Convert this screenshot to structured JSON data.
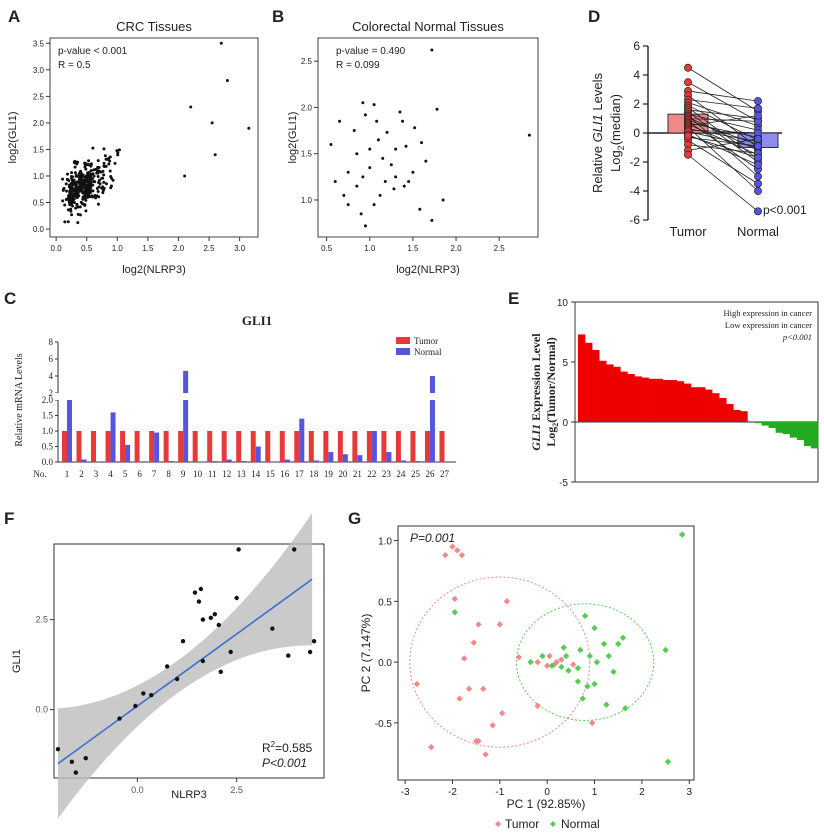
{
  "panel_letters": {
    "A": "A",
    "B": "B",
    "C": "C",
    "D": "D",
    "E": "E",
    "F": "F",
    "G": "G"
  },
  "colors": {
    "tumor": "#e8393a",
    "normal": "#5555e0",
    "tumor_light": "#f08a8a",
    "normal_light": "#8c8cf0",
    "red": "#ee0000",
    "green": "#22aa22",
    "pca_tumor": "#f08a8a",
    "pca_normal": "#55cc55",
    "fit_line": "#3a6fd0",
    "ci_band": "#bdbdbd"
  },
  "chart_data": [
    {
      "id": "A",
      "type": "scatter",
      "title": "CRC Tissues",
      "xlabel": "log2(NLRP3)",
      "ylabel": "log2(GLI1)",
      "xlim": [
        -0.1,
        3.3
      ],
      "ylim": [
        -0.15,
        3.6
      ],
      "xticks": [
        "0.0",
        "0.5",
        "1.0",
        "1.5",
        "2.0",
        "2.5",
        "3.0"
      ],
      "yticks": [
        "0.0",
        "0.5",
        "1.0",
        "1.5",
        "2.0",
        "2.5",
        "3.0",
        "3.5"
      ],
      "annotations": [
        "p-value < 0.001",
        "R = 0.5"
      ],
      "n_points": 320,
      "trend": {
        "slope": 0.62,
        "intercept": 0.55,
        "noise": 0.42
      },
      "outliers": [
        [
          2.7,
          3.5
        ],
        [
          2.8,
          2.8
        ],
        [
          3.15,
          1.9
        ],
        [
          2.6,
          1.4
        ],
        [
          2.55,
          2.0
        ],
        [
          2.2,
          2.3
        ],
        [
          2.1,
          1.0
        ]
      ]
    },
    {
      "id": "B",
      "type": "scatter",
      "title": "Colorectal Normal Tissues",
      "xlabel": "log2(NLRP3)",
      "ylabel": "log2(GLI1)",
      "xlim": [
        0.4,
        2.95
      ],
      "ylim": [
        0.6,
        2.75
      ],
      "xticks": [
        "0.5",
        "1.0",
        "1.5",
        "2.0",
        "2.5"
      ],
      "yticks": [
        "1.0",
        "1.5",
        "2.0",
        "2.5"
      ],
      "annotations": [
        "p-value = 0.490",
        "R = 0.099"
      ],
      "points": [
        [
          1.72,
          2.62
        ],
        [
          0.92,
          2.05
        ],
        [
          1.05,
          2.03
        ],
        [
          1.78,
          1.98
        ],
        [
          0.65,
          1.85
        ],
        [
          0.95,
          1.92
        ],
        [
          1.38,
          1.85
        ],
        [
          0.82,
          1.75
        ],
        [
          1.2,
          1.73
        ],
        [
          1.52,
          1.78
        ],
        [
          1.1,
          1.65
        ],
        [
          1.3,
          1.55
        ],
        [
          1.6,
          1.62
        ],
        [
          0.55,
          1.6
        ],
        [
          0.85,
          1.5
        ],
        [
          1.0,
          1.55
        ],
        [
          1.15,
          1.45
        ],
        [
          1.42,
          1.58
        ],
        [
          1.0,
          1.35
        ],
        [
          1.25,
          1.38
        ],
        [
          1.5,
          1.3
        ],
        [
          1.65,
          1.42
        ],
        [
          0.75,
          1.3
        ],
        [
          0.92,
          1.25
        ],
        [
          1.18,
          1.2
        ],
        [
          1.3,
          1.25
        ],
        [
          1.45,
          1.2
        ],
        [
          1.4,
          1.15
        ],
        [
          1.28,
          1.12
        ],
        [
          0.6,
          1.2
        ],
        [
          0.85,
          1.15
        ],
        [
          0.7,
          1.05
        ],
        [
          1.12,
          1.05
        ],
        [
          1.05,
          0.95
        ],
        [
          0.75,
          0.95
        ],
        [
          1.58,
          0.9
        ],
        [
          0.9,
          0.85
        ],
        [
          1.85,
          1.0
        ],
        [
          1.72,
          0.78
        ],
        [
          0.95,
          0.72
        ],
        [
          2.85,
          1.7
        ],
        [
          1.08,
          1.85
        ],
        [
          1.35,
          1.95
        ]
      ]
    },
    {
      "id": "C",
      "type": "bar",
      "title": "GLI1",
      "xlabel": "No.",
      "ylabel": "Relative mRNA Levels",
      "categories": [
        "1",
        "2",
        "3",
        "4",
        "5",
        "6",
        "7",
        "8",
        "9",
        "10",
        "11",
        "12",
        "13",
        "14",
        "15",
        "16",
        "17",
        "18",
        "19",
        "20",
        "21",
        "22",
        "23",
        "24",
        "25",
        "26",
        "27"
      ],
      "yticks_lower": [
        "0.0",
        "0.5",
        "1.0",
        "1.5",
        "2.0"
      ],
      "yticks_upper": [
        "2",
        "4",
        "6",
        "8"
      ],
      "axis_break": [
        2.0,
        2.0
      ],
      "series": [
        {
          "name": "Tumor",
          "values": [
            1,
            1,
            1,
            1,
            1,
            1,
            1,
            1,
            1,
            1,
            1,
            1,
            1,
            1,
            1,
            1,
            1,
            1,
            1,
            1,
            1,
            1,
            1,
            1,
            1,
            1,
            1
          ]
        },
        {
          "name": "Normal",
          "values": [
            2.0,
            0.08,
            0.02,
            1.6,
            0.55,
            0.02,
            0.95,
            0.03,
            4.6,
            0.02,
            0.03,
            0.08,
            0.03,
            0.5,
            0.02,
            0.08,
            1.4,
            0.05,
            0.32,
            0.25,
            0.22,
            1.0,
            0.32,
            0.05,
            0.03,
            4.0,
            0.02
          ]
        }
      ],
      "legend": [
        "Tumor",
        "Normal"
      ],
      "legend_position": "top-right"
    },
    {
      "id": "D",
      "type": "bar",
      "ylabel_line1": "Relative ",
      "ylabel_gene": "GLI1",
      "ylabel_line1_end": " Levels",
      "ylabel_line2": "Log",
      "ylabel_sub": "2",
      "ylabel_line2_end": "(median)",
      "categories": [
        "Tumor",
        "Normal"
      ],
      "values": [
        1.3,
        -1.0
      ],
      "ylim": [
        -6,
        6
      ],
      "yticks": [
        "-6",
        "-4",
        "-2",
        "0",
        "2",
        "4",
        "6"
      ],
      "annotation": "p<0.001",
      "pairs": [
        [
          4.5,
          1.5
        ],
        [
          3.5,
          0.8
        ],
        [
          2.9,
          2.2
        ],
        [
          2.6,
          -1.0
        ],
        [
          2.3,
          1.7
        ],
        [
          2.1,
          0.5
        ],
        [
          1.9,
          -0.5
        ],
        [
          1.75,
          -1.8
        ],
        [
          1.6,
          1.0
        ],
        [
          1.45,
          -2.0
        ],
        [
          1.3,
          0.2
        ],
        [
          1.2,
          -3.0
        ],
        [
          1.1,
          -1.2
        ],
        [
          1.0,
          0.8
        ],
        [
          0.9,
          -0.8
        ],
        [
          0.8,
          -2.5
        ],
        [
          0.7,
          -0.3
        ],
        [
          0.6,
          -1.5
        ],
        [
          0.5,
          1.2
        ],
        [
          0.4,
          -4.0
        ],
        [
          0.3,
          -0.6
        ],
        [
          0.2,
          0.0
        ],
        [
          0.1,
          -1.0
        ],
        [
          -0.1,
          -2.2
        ],
        [
          -0.3,
          -0.9
        ],
        [
          -0.5,
          -3.5
        ],
        [
          -0.8,
          -1.4
        ],
        [
          -1.2,
          -0.4
        ],
        [
          -1.5,
          -5.4
        ],
        [
          -0.2,
          -1.7
        ]
      ]
    },
    {
      "id": "E",
      "type": "bar",
      "ylabel_gene": "GLI1",
      "ylabel_line1_end": " Expression Level",
      "ylabel_line2": "Log",
      "ylabel_sub": "2",
      "ylabel_line2_end": "(Tumor/Normal)",
      "ylim": [
        -5,
        10
      ],
      "yticks": [
        "-5",
        "0",
        "5",
        "10"
      ],
      "values": [
        7.3,
        6.6,
        6.0,
        5.1,
        4.8,
        4.6,
        4.2,
        4.0,
        3.8,
        3.7,
        3.6,
        3.6,
        3.5,
        3.5,
        3.4,
        3.2,
        2.9,
        2.9,
        2.7,
        2.4,
        2.0,
        1.5,
        1.0,
        0.9,
        0.05,
        -0.1,
        -0.3,
        -0.5,
        -0.9,
        -1.0,
        -1.3,
        -1.5,
        -2.0,
        -2.2
      ],
      "legend": [
        "High expression in cancer",
        "Low expression in cancer"
      ],
      "annotation": "p<0.001"
    },
    {
      "id": "F",
      "type": "scatter",
      "xlabel": "NLRP3",
      "ylabel": "GLI1",
      "xlim": [
        -2.1,
        4.7
      ],
      "ylim": [
        -1.9,
        4.6
      ],
      "xticks": [
        "0.0",
        "2.5"
      ],
      "yticks": [
        "0.0",
        "2.5"
      ],
      "r2_label": "R",
      "r2_sup": "2",
      "r2_value": "=0.585",
      "p_label": "P<0.001",
      "fit": {
        "slope": 0.8,
        "intercept": 0.1
      },
      "points": [
        [
          -2.0,
          -1.1
        ],
        [
          -1.65,
          -1.45
        ],
        [
          -1.55,
          -1.75
        ],
        [
          -1.3,
          -1.35
        ],
        [
          -0.45,
          -0.25
        ],
        [
          -0.05,
          0.1
        ],
        [
          0.15,
          0.45
        ],
        [
          0.35,
          0.4
        ],
        [
          0.75,
          1.2
        ],
        [
          1.0,
          0.85
        ],
        [
          1.15,
          1.9
        ],
        [
          1.45,
          3.25
        ],
        [
          1.55,
          3.0
        ],
        [
          1.6,
          3.35
        ],
        [
          1.65,
          2.5
        ],
        [
          1.65,
          1.35
        ],
        [
          1.85,
          2.55
        ],
        [
          1.95,
          2.65
        ],
        [
          2.05,
          2.35
        ],
        [
          2.1,
          1.05
        ],
        [
          2.35,
          1.6
        ],
        [
          2.55,
          4.45
        ],
        [
          2.5,
          3.1
        ],
        [
          3.4,
          2.25
        ],
        [
          3.8,
          1.5
        ],
        [
          3.95,
          4.45
        ],
        [
          4.35,
          1.6
        ],
        [
          4.45,
          1.9
        ]
      ]
    },
    {
      "id": "G",
      "type": "scatter",
      "annotation": "P=0.001",
      "xlabel": "PC 1 (92.85%)",
      "ylabel": "PC 2 (7.147%)",
      "xlim": [
        -3.15,
        3.1
      ],
      "ylim": [
        -0.97,
        1.12
      ],
      "xticks": [
        "-3",
        "-2",
        "-1",
        "0",
        "1",
        "2",
        "3"
      ],
      "yticks": [
        "-0.5",
        "0.0",
        "0.5",
        "1.0"
      ],
      "legend": [
        "Tumor",
        "Normal"
      ],
      "legend_position": "bottom",
      "tumor_points": [
        [
          -2.0,
          0.95
        ],
        [
          -1.9,
          0.92
        ],
        [
          -2.15,
          0.88
        ],
        [
          -1.8,
          0.88
        ],
        [
          -1.95,
          0.52
        ],
        [
          -1.45,
          0.31
        ],
        [
          -1.0,
          0.31
        ],
        [
          -0.85,
          0.5
        ],
        [
          -1.55,
          0.16
        ],
        [
          -0.6,
          0.04
        ],
        [
          -0.2,
          0.0
        ],
        [
          0.0,
          -0.03
        ],
        [
          0.05,
          0.05
        ],
        [
          0.3,
          0.02
        ],
        [
          0.15,
          -0.02
        ],
        [
          -1.75,
          0.03
        ],
        [
          -2.75,
          -0.18
        ],
        [
          -1.65,
          -0.22
        ],
        [
          -1.35,
          -0.22
        ],
        [
          -1.85,
          -0.3
        ],
        [
          -0.95,
          -0.42
        ],
        [
          -1.15,
          -0.52
        ],
        [
          -0.2,
          -0.36
        ],
        [
          -1.5,
          -0.65
        ],
        [
          -1.45,
          -0.65
        ],
        [
          -2.45,
          -0.7
        ],
        [
          -1.3,
          -0.76
        ],
        [
          0.95,
          -0.5
        ],
        [
          0.2,
          0.0
        ],
        [
          0.55,
          -0.02
        ]
      ],
      "normal_points": [
        [
          2.85,
          1.05
        ],
        [
          -1.95,
          0.41
        ],
        [
          0.8,
          0.38
        ],
        [
          1.0,
          0.28
        ],
        [
          1.6,
          0.2
        ],
        [
          1.2,
          0.15
        ],
        [
          1.5,
          0.15
        ],
        [
          2.5,
          0.1
        ],
        [
          0.35,
          0.12
        ],
        [
          0.7,
          0.1
        ],
        [
          0.9,
          0.05
        ],
        [
          1.3,
          0.05
        ],
        [
          1.05,
          0.0
        ],
        [
          -0.35,
          0.0
        ],
        [
          -0.1,
          0.05
        ],
        [
          0.1,
          -0.03
        ],
        [
          0.45,
          -0.07
        ],
        [
          0.65,
          -0.05
        ],
        [
          1.4,
          -0.08
        ],
        [
          0.85,
          -0.2
        ],
        [
          0.65,
          -0.16
        ],
        [
          1.0,
          -0.18
        ],
        [
          1.25,
          -0.35
        ],
        [
          1.65,
          -0.38
        ],
        [
          2.55,
          -0.82
        ],
        [
          0.75,
          -0.3
        ],
        [
          0.4,
          0.05
        ],
        [
          0.3,
          -0.04
        ]
      ],
      "ellipses": [
        {
          "group": "Tumor",
          "cx": -1.0,
          "cy": 0.0,
          "rx": 1.9,
          "ry": 0.7
        },
        {
          "group": "Normal",
          "cx": 0.8,
          "cy": 0.0,
          "rx": 1.45,
          "ry": 0.48
        }
      ]
    }
  ]
}
